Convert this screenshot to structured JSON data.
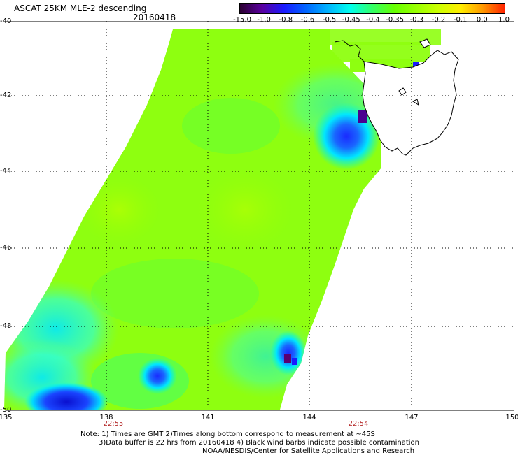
{
  "header": {
    "title": "ASCAT 25KM MLE-2 descending",
    "date": "20160418"
  },
  "colorbar": {
    "labels": [
      "-15.0",
      "-1.0",
      "-0.8",
      "-0.6",
      "-0.5",
      "-0.45",
      "-0.4",
      "-0.35",
      "-0.3",
      "-0.2",
      "-0.1",
      "0.0",
      "1.0"
    ],
    "colors": [
      "#2a0030",
      "#5a00a0",
      "#1a1aff",
      "#0066ff",
      "#00b4ff",
      "#00ffee",
      "#33ff66",
      "#66ff00",
      "#99ff00",
      "#ccff00",
      "#ffee00",
      "#ff9900",
      "#ff2200"
    ]
  },
  "map": {
    "lat_labels": [
      "-40",
      "-42",
      "-44",
      "-46",
      "-48",
      "-50"
    ],
    "lon_labels": [
      "135",
      "138",
      "141",
      "144",
      "147",
      "150"
    ],
    "pass_times": [
      "22:55",
      "22:54"
    ]
  },
  "notes": {
    "line1": "Note: 1) Times are GMT 2)Times along bottom correspond to measurement at ~45S",
    "line2": "3)Data buffer is 22 hrs from 20160418 4) Black wind barbs indicate possible contamination",
    "line3": "NOAA/NESDIS/Center for Satellite Applications and Research"
  }
}
